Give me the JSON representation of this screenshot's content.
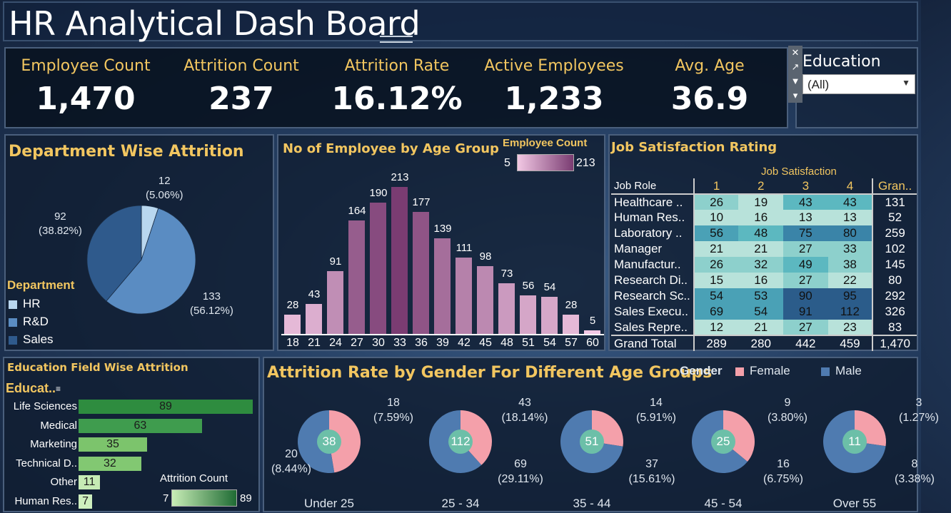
{
  "title": "HR Analytical Dash Board",
  "kpis": [
    {
      "label": "Employee Count",
      "value": "1,470"
    },
    {
      "label": "Attrition Count",
      "value": "237"
    },
    {
      "label": "Attrition Rate",
      "value": "16.12%"
    },
    {
      "label": "Active Employees",
      "value": "1,233"
    },
    {
      "label": "Avg. Age",
      "value": "36.9"
    }
  ],
  "education_filter": {
    "label": "Education",
    "selected": "(All)"
  },
  "colors": {
    "gold": "#f2c660",
    "hr": "#b9d7ef",
    "rnd": "#5a8cc2",
    "sales": "#2f5a8c",
    "female": "#f4a0aa",
    "male": "#4f7bb0",
    "center": "#6cbfa8"
  },
  "dept": {
    "title": "Department Wise Attrition",
    "legend_title": "Department",
    "slices": [
      {
        "name": "HR",
        "value": 12,
        "label1": "12",
        "label2": "(5.06%)"
      },
      {
        "name": "R&D",
        "value": 133,
        "label1": "133",
        "label2": "(56.12%)"
      },
      {
        "name": "Sales",
        "value": 92,
        "label1": "92",
        "label2": "(38.82%)"
      }
    ]
  },
  "age_group": {
    "title": "No of Employee by Age Group",
    "legend_title": "Employee Count",
    "legend_min": "5",
    "legend_max": "213"
  },
  "job": {
    "title": "Job Satisfaction Rating",
    "col_group": "Job Satisfaction",
    "row_header": "Job Role",
    "cols": [
      "1",
      "2",
      "3",
      "4"
    ],
    "total_header": "Gran..",
    "rows": [
      {
        "role": "Healthcare ..",
        "v": [
          26,
          19,
          43,
          43
        ],
        "total": "131"
      },
      {
        "role": "Human Res..",
        "v": [
          10,
          16,
          13,
          13
        ],
        "total": "52"
      },
      {
        "role": "Laboratory ..",
        "v": [
          56,
          48,
          75,
          80
        ],
        "total": "259"
      },
      {
        "role": "Manager",
        "v": [
          21,
          21,
          27,
          33
        ],
        "total": "102"
      },
      {
        "role": "Manufactur..",
        "v": [
          26,
          32,
          49,
          38
        ],
        "total": "145"
      },
      {
        "role": "Research Di..",
        "v": [
          15,
          16,
          27,
          22
        ],
        "total": "80"
      },
      {
        "role": "Research Sc..",
        "v": [
          54,
          53,
          90,
          95
        ],
        "total": "292"
      },
      {
        "role": "Sales Execu..",
        "v": [
          69,
          54,
          91,
          112
        ],
        "total": "326"
      },
      {
        "role": "Sales Repre..",
        "v": [
          12,
          21,
          27,
          23
        ],
        "total": "83"
      }
    ],
    "grand": {
      "role": "Grand Total",
      "v": [
        "289",
        "280",
        "442",
        "459"
      ],
      "total": "1,470"
    }
  },
  "edu_field": {
    "title": "Education Field Wise Attrition",
    "axis_title": "Educat..",
    "legend_title": "Attrition Count",
    "legend_min": "7",
    "legend_max": "89"
  },
  "gender": {
    "title": "Attrition Rate by Gender For Different Age Groups",
    "legend_title": "Gender",
    "female_label": "Female",
    "male_label": "Male",
    "groups": [
      {
        "cat": "Under 25",
        "total": "38",
        "female": 18,
        "male": 20,
        "f1": "18",
        "f2": "(7.59%)",
        "m1": "20",
        "m2": "(8.44%)"
      },
      {
        "cat": "25 - 34",
        "total": "112",
        "female": 43,
        "male": 69,
        "f1": "43",
        "f2": "(18.14%)",
        "m1": "69",
        "m2": "(29.11%)"
      },
      {
        "cat": "35 - 44",
        "total": "51",
        "female": 14,
        "male": 37,
        "f1": "14",
        "f2": "(5.91%)",
        "m1": "37",
        "m2": "(15.61%)"
      },
      {
        "cat": "45 - 54",
        "total": "25",
        "female": 9,
        "male": 16,
        "f1": "9",
        "f2": "(3.80%)",
        "m1": "16",
        "m2": "(6.75%)"
      },
      {
        "cat": "Over 55",
        "total": "11",
        "female": 3,
        "male": 8,
        "f1": "3",
        "f2": "(1.27%)",
        "m1": "8",
        "m2": "(3.38%)"
      }
    ]
  },
  "chart_data": [
    {
      "type": "bar",
      "title": "No of Employee by Age Group",
      "categories": [
        "18",
        "21",
        "24",
        "27",
        "30",
        "33",
        "36",
        "39",
        "42",
        "45",
        "48",
        "51",
        "54",
        "57",
        "60"
      ],
      "values": [
        28,
        43,
        91,
        164,
        190,
        213,
        177,
        139,
        111,
        98,
        73,
        56,
        54,
        28,
        5
      ]
    },
    {
      "type": "bar",
      "title": "Education Field Wise Attrition",
      "categories": [
        "Life Sciences",
        "Medical",
        "Marketing",
        "Technical D..",
        "Other",
        "Human Res.."
      ],
      "values": [
        89,
        63,
        35,
        32,
        11,
        7
      ]
    }
  ]
}
